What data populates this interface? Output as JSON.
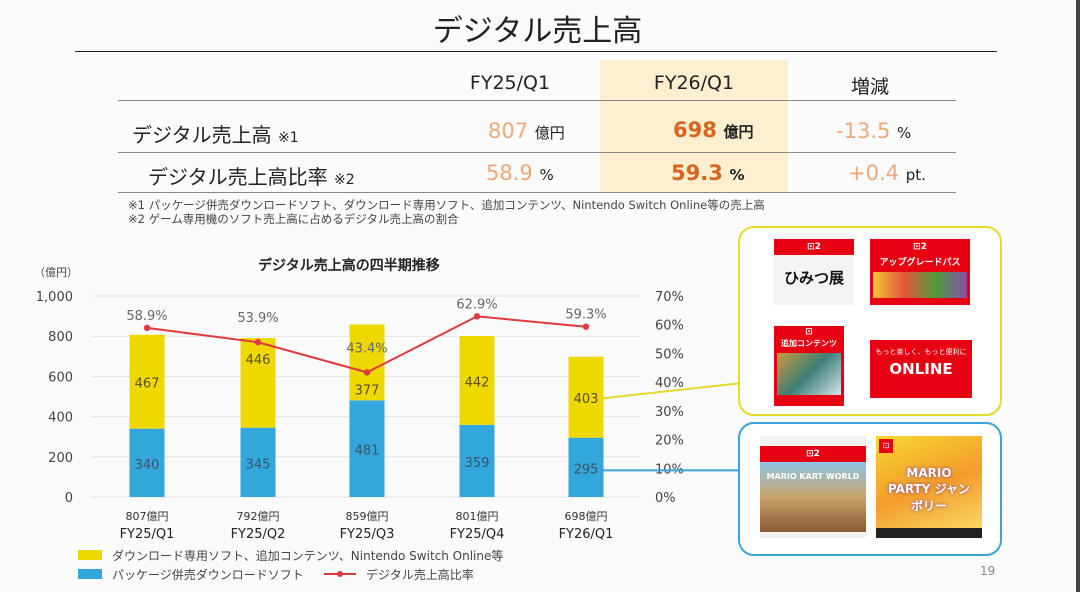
{
  "slide": {
    "title": "デジタル売上高",
    "page_number": "19"
  },
  "summary_table": {
    "headers": [
      "FY25/Q1",
      "FY26/Q1",
      "増減"
    ],
    "rows": [
      {
        "label": "デジタル売上高",
        "note": "※1",
        "prev_value": "807",
        "prev_unit": "億円",
        "cur_value": "698",
        "cur_unit": "億円",
        "change_value": "-13.5",
        "change_unit": "%"
      },
      {
        "label": "デジタル売上高比率",
        "note": "※2",
        "prev_value": "58.9",
        "prev_unit": "%",
        "cur_value": "59.3",
        "cur_unit": "%",
        "change_value": "+0.4",
        "change_unit": "pt."
      }
    ],
    "footnotes": [
      "※1 パッケージ併売ダウンロードソフト、ダウンロード専用ソフト、追加コンテンツ、Nintendo Switch Online等の売上高",
      "※2 ゲーム専用機のソフト売上高に占めるデジタル売上高の割合"
    ]
  },
  "chart_data": {
    "type": "bar",
    "stacked": true,
    "title": "デジタル売上高の四半期推移",
    "ylabel": "（億円）",
    "ylim": [
      0,
      1000
    ],
    "y_ticks": [
      "0",
      "200",
      "400",
      "600",
      "800",
      "1,000"
    ],
    "y_tick_values": [
      0,
      200,
      400,
      600,
      800,
      1000
    ],
    "y2lim": [
      0,
      70
    ],
    "y2_ticks": [
      "0%",
      "10%",
      "20%",
      "30%",
      "40%",
      "50%",
      "60%",
      "70%"
    ],
    "y2_tick_values": [
      0,
      10,
      20,
      30,
      40,
      50,
      60,
      70
    ],
    "grid": true,
    "categories": [
      "FY25/Q1",
      "FY25/Q2",
      "FY25/Q3",
      "FY25/Q4",
      "FY26/Q1"
    ],
    "totals_labels": [
      "807億円",
      "792億円",
      "859億円",
      "801億円",
      "698億円"
    ],
    "series": [
      {
        "name": "パッケージ併売ダウンロードソフト",
        "kind": "bar",
        "color": "#33a6dc",
        "values": [
          340,
          345,
          481,
          359,
          295
        ]
      },
      {
        "name": "ダウンロード専用ソフト、追加コンテンツ、Nintendo Switch Online等",
        "kind": "bar",
        "color": "#eed800",
        "values": [
          467,
          446,
          377,
          442,
          403
        ]
      },
      {
        "name": "デジタル売上高比率",
        "kind": "line",
        "axis": "right",
        "color": "#e0393e",
        "values": [
          58.9,
          53.9,
          43.4,
          62.9,
          59.3
        ],
        "labels": [
          "58.9%",
          "53.9%",
          "43.4%",
          "62.9%",
          "59.3%"
        ]
      }
    ],
    "legend": {
      "placement": "bottom-left",
      "entries": [
        {
          "label": "ダウンロード専用ソフト、追加コンテンツ、Nintendo Switch Online等",
          "color": "#eed800",
          "marker": "box"
        },
        {
          "label": "パッケージ併売ダウンロードソフト",
          "color": "#33a6dc",
          "marker": "box"
        },
        {
          "label": "デジタル売上高比率",
          "color": "#e0393e",
          "marker": "line"
        }
      ]
    }
  },
  "product_panels": {
    "download_only": {
      "border_color": "#e8d82a",
      "cards": [
        {
          "name": "ひみつ展",
          "text": "ひみつ展"
        },
        {
          "name": "アップグレードパス",
          "text": "アップグレードパス"
        },
        {
          "name": "追加コンテンツ",
          "text": "追加コンテンツ"
        },
        {
          "name": "Nintendo Switch Online",
          "tagline": "もっと楽しく、もっと便利に",
          "text": "ONLINE"
        }
      ]
    },
    "package_download": {
      "border_color": "#3aa3d8",
      "cards": [
        {
          "name": "マリオカート ワールド",
          "text": "MARIO KART WORLD"
        },
        {
          "name": "スーパー マリオパーティ ジャンボリー",
          "text": "MARIO PARTY ジャンボリー"
        }
      ]
    }
  }
}
